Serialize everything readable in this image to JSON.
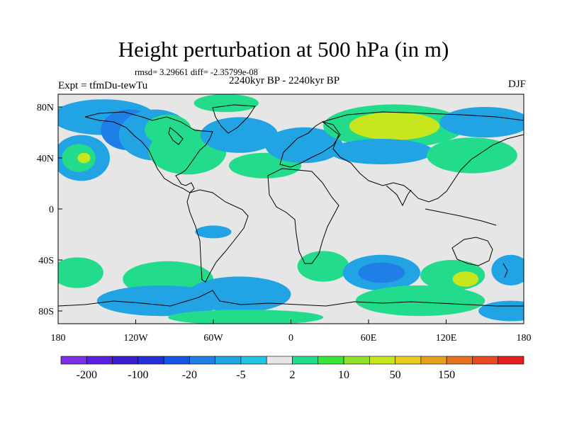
{
  "title": "Height perturbation at 500 hPa (in m)",
  "rmsd_line": "rmsd= 3.29661  diff= -2.35799e-08",
  "period": "2240kyr BP - 2240kyr BP",
  "experiment": "Expt = tfmDu-tewTu",
  "season": "DJF",
  "lat_ticks": [
    {
      "label": "80N",
      "lat": 80
    },
    {
      "label": "40N",
      "lat": 40
    },
    {
      "label": "0",
      "lat": 0
    },
    {
      "label": "40S",
      "lat": -40
    },
    {
      "label": "80S",
      "lat": -80
    }
  ],
  "lon_ticks": [
    {
      "label": "180",
      "lon": -180
    },
    {
      "label": "120W",
      "lon": -120
    },
    {
      "label": "60W",
      "lon": -60
    },
    {
      "label": "0",
      "lon": 0
    },
    {
      "label": "60E",
      "lon": 60
    },
    {
      "label": "120E",
      "lon": 120
    },
    {
      "label": "180",
      "lon": 180
    }
  ],
  "colorbar": {
    "colors": [
      "#7d2fe6",
      "#5a1fdf",
      "#3b1ccf",
      "#2430da",
      "#1456e0",
      "#1f7fe6",
      "#22a4e4",
      "#23c3e4",
      "#e6e6e6",
      "#22dc8c",
      "#37e637",
      "#8fe02a",
      "#c7e61e",
      "#e6cd1e",
      "#e6a01e",
      "#e6731e",
      "#e64a1e",
      "#e61e1e"
    ],
    "labels": [
      {
        "text": "-200",
        "index": 1
      },
      {
        "text": "-100",
        "index": 3
      },
      {
        "text": "-20",
        "index": 5
      },
      {
        "text": "-5",
        "index": 7
      },
      {
        "text": "2",
        "index": 9
      },
      {
        "text": "10",
        "index": 11
      },
      {
        "text": "50",
        "index": 13
      },
      {
        "text": "150",
        "index": 15
      }
    ]
  },
  "anomaly_patches": [
    {
      "lon": -145,
      "lat": 72,
      "rx": 40,
      "ry": 14,
      "level": "lightblue"
    },
    {
      "lon": -125,
      "lat": 62,
      "rx": 22,
      "ry": 16,
      "level": "blue"
    },
    {
      "lon": -162,
      "lat": 40,
      "rx": 22,
      "ry": 18,
      "level": "lightblue"
    },
    {
      "lon": -164,
      "lat": 40,
      "rx": 13,
      "ry": 11,
      "level": "lightgreen"
    },
    {
      "lon": -160,
      "lat": 40,
      "rx": 5,
      "ry": 4,
      "level": "yellowgreen"
    },
    {
      "lon": -105,
      "lat": 58,
      "rx": 28,
      "ry": 20,
      "level": "lightblue"
    },
    {
      "lon": -80,
      "lat": 45,
      "rx": 30,
      "ry": 18,
      "level": "lightgreen"
    },
    {
      "lon": -95,
      "lat": 62,
      "rx": 18,
      "ry": 12,
      "level": "lightgreen"
    },
    {
      "lon": -40,
      "lat": 58,
      "rx": 30,
      "ry": 14,
      "level": "lightblue"
    },
    {
      "lon": -20,
      "lat": 34,
      "rx": 28,
      "ry": 10,
      "level": "lightgreen"
    },
    {
      "lon": -50,
      "lat": 83,
      "rx": 25,
      "ry": 7,
      "level": "lightgreen"
    },
    {
      "lon": 10,
      "lat": 50,
      "rx": 30,
      "ry": 14,
      "level": "lightblue"
    },
    {
      "lon": 80,
      "lat": 65,
      "rx": 55,
      "ry": 17,
      "level": "lightgreen"
    },
    {
      "lon": 80,
      "lat": 65,
      "rx": 35,
      "ry": 11,
      "level": "yellowgreen"
    },
    {
      "lon": 70,
      "lat": 45,
      "rx": 40,
      "ry": 10,
      "level": "lightblue"
    },
    {
      "lon": 140,
      "lat": 42,
      "rx": 35,
      "ry": 14,
      "level": "lightgreen"
    },
    {
      "lon": 150,
      "lat": 68,
      "rx": 35,
      "ry": 12,
      "level": "lightblue"
    },
    {
      "lon": -60,
      "lat": -18,
      "rx": 14,
      "ry": 5,
      "level": "lightblue"
    },
    {
      "lon": -165,
      "lat": -50,
      "rx": 20,
      "ry": 12,
      "level": "lightgreen"
    },
    {
      "lon": -95,
      "lat": -55,
      "rx": 35,
      "ry": 14,
      "level": "lightgreen"
    },
    {
      "lon": -100,
      "lat": -72,
      "rx": 50,
      "ry": 12,
      "level": "lightblue"
    },
    {
      "lon": -40,
      "lat": -67,
      "rx": 40,
      "ry": 14,
      "level": "lightblue"
    },
    {
      "lon": -35,
      "lat": -85,
      "rx": 60,
      "ry": 6,
      "level": "lightgreen"
    },
    {
      "lon": 25,
      "lat": -45,
      "rx": 20,
      "ry": 12,
      "level": "lightgreen"
    },
    {
      "lon": 70,
      "lat": -50,
      "rx": 30,
      "ry": 14,
      "level": "lightblue"
    },
    {
      "lon": 70,
      "lat": -50,
      "rx": 18,
      "ry": 8,
      "level": "blue"
    },
    {
      "lon": 125,
      "lat": -52,
      "rx": 25,
      "ry": 12,
      "level": "lightgreen"
    },
    {
      "lon": 135,
      "lat": -55,
      "rx": 10,
      "ry": 6,
      "level": "yellowgreen"
    },
    {
      "lon": 170,
      "lat": -48,
      "rx": 15,
      "ry": 12,
      "level": "lightblue"
    },
    {
      "lon": 100,
      "lat": -72,
      "rx": 50,
      "ry": 12,
      "level": "lightgreen"
    },
    {
      "lon": 170,
      "lat": -80,
      "rx": 25,
      "ry": 8,
      "level": "lightblue"
    }
  ],
  "level_colors": {
    "blue": "#1f7fe6",
    "lightblue": "#22a4e4",
    "lightgreen": "#22dc8c",
    "yellowgreen": "#c7e61e"
  }
}
